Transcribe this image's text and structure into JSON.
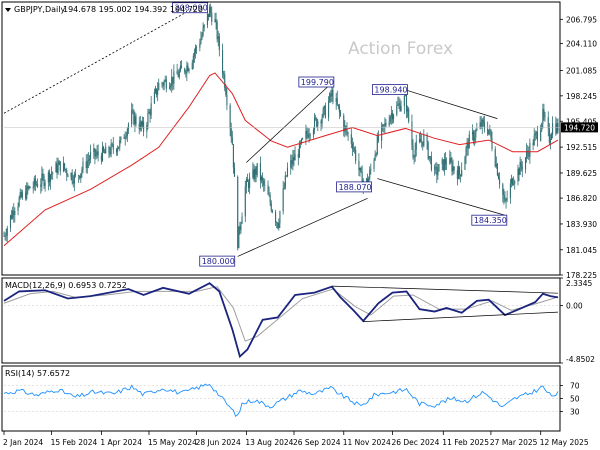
{
  "header": {
    "symbol": "GBPJPY,Daily",
    "ohlc": "194.678 195.002 194.392 194.720"
  },
  "watermark": "Action Forex",
  "colors": {
    "candle": "#2f6f73",
    "ma": "#e02020",
    "macd": "#1a237e",
    "signal": "#9e9e9e",
    "rsi": "#1e90ff",
    "annotation_border": "#1f1f8f",
    "current_price_bg": "#000000",
    "frame": "#000000"
  },
  "chart_data": [
    {
      "type": "candlestick",
      "name": "price",
      "title": "GBPJPY,Daily",
      "ylim": [
        178.225,
        208.73
      ],
      "y_ticks": [
        "206.795",
        "204.110",
        "201.085",
        "198.245",
        "195.405",
        "192.515",
        "189.625",
        "186.820",
        "183.930",
        "181.045",
        "178.225"
      ],
      "current_price": "194.720",
      "path_points": [
        {
          "date": "2024-01-02",
          "value": 182.6
        },
        {
          "date": "2024-01-12",
          "value": 186.0
        },
        {
          "date": "2024-01-26",
          "value": 188.0
        },
        {
          "date": "2024-02-09",
          "value": 189.0
        },
        {
          "date": "2024-02-23",
          "value": 190.5
        },
        {
          "date": "2024-03-08",
          "value": 189.0
        },
        {
          "date": "2024-03-22",
          "value": 191.5
        },
        {
          "date": "2024-04-05",
          "value": 191.8
        },
        {
          "date": "2024-04-19",
          "value": 193.0
        },
        {
          "date": "2024-04-29",
          "value": 196.0
        },
        {
          "date": "2024-05-10",
          "value": 194.5
        },
        {
          "date": "2024-05-24",
          "value": 199.5
        },
        {
          "date": "2024-06-07",
          "value": 200.2
        },
        {
          "date": "2024-06-21",
          "value": 201.8
        },
        {
          "date": "2024-07-03",
          "value": 205.0
        },
        {
          "date": "2024-07-10",
          "value": 207.8
        },
        {
          "date": "2024-07-15",
          "value": 206.5
        },
        {
          "date": "2024-07-25",
          "value": 199.0
        },
        {
          "date": "2024-07-31",
          "value": 193.0
        },
        {
          "date": "2024-08-05",
          "value": 182.0
        },
        {
          "date": "2024-08-12",
          "value": 188.0
        },
        {
          "date": "2024-08-23",
          "value": 190.0
        },
        {
          "date": "2024-09-05",
          "value": 186.0
        },
        {
          "date": "2024-09-11",
          "value": 184.0
        },
        {
          "date": "2024-09-20",
          "value": 190.0
        },
        {
          "date": "2024-09-30",
          "value": 192.0
        },
        {
          "date": "2024-10-10",
          "value": 194.5
        },
        {
          "date": "2024-10-25",
          "value": 196.5
        },
        {
          "date": "2024-10-31",
          "value": 198.5
        },
        {
          "date": "2024-11-05",
          "value": 197.0
        },
        {
          "date": "2024-11-12",
          "value": 194.5
        },
        {
          "date": "2024-11-19",
          "value": 193.0
        },
        {
          "date": "2024-11-27",
          "value": 189.0
        },
        {
          "date": "2024-12-03",
          "value": 188.5
        },
        {
          "date": "2024-12-12",
          "value": 193.0
        },
        {
          "date": "2024-12-23",
          "value": 196.0
        },
        {
          "date": "2025-01-07",
          "value": 198.0
        },
        {
          "date": "2025-01-14",
          "value": 192.0
        },
        {
          "date": "2025-01-24",
          "value": 193.5
        },
        {
          "date": "2025-02-03",
          "value": 189.5
        },
        {
          "date": "2025-02-14",
          "value": 191.0
        },
        {
          "date": "2025-02-26",
          "value": 189.5
        },
        {
          "date": "2025-03-06",
          "value": 193.0
        },
        {
          "date": "2025-03-18",
          "value": 195.0
        },
        {
          "date": "2025-03-25",
          "value": 194.5
        },
        {
          "date": "2025-04-02",
          "value": 190.0
        },
        {
          "date": "2025-04-09",
          "value": 186.0
        },
        {
          "date": "2025-04-16",
          "value": 189.0
        },
        {
          "date": "2025-04-25",
          "value": 190.5
        },
        {
          "date": "2025-05-02",
          "value": 192.5
        },
        {
          "date": "2025-05-09",
          "value": 194.0
        },
        {
          "date": "2025-05-14",
          "value": 196.0
        },
        {
          "date": "2025-05-20",
          "value": 193.5
        },
        {
          "date": "2025-05-23",
          "value": 195.0
        },
        {
          "date": "2025-05-28",
          "value": 194.7
        }
      ],
      "ma_points": [
        {
          "date": "2024-01-02",
          "value": 181.5
        },
        {
          "date": "2024-02-09",
          "value": 185.5
        },
        {
          "date": "2024-03-22",
          "value": 187.8
        },
        {
          "date": "2024-04-29",
          "value": 190.5
        },
        {
          "date": "2024-05-24",
          "value": 192.5
        },
        {
          "date": "2024-06-21",
          "value": 197.0
        },
        {
          "date": "2024-07-10",
          "value": 200.5
        },
        {
          "date": "2024-07-15",
          "value": 200.8
        },
        {
          "date": "2024-07-31",
          "value": 198.5
        },
        {
          "date": "2024-08-12",
          "value": 195.5
        },
        {
          "date": "2024-09-05",
          "value": 193.2
        },
        {
          "date": "2024-09-20",
          "value": 192.5
        },
        {
          "date": "2024-10-25",
          "value": 193.8
        },
        {
          "date": "2024-11-19",
          "value": 194.7
        },
        {
          "date": "2024-12-12",
          "value": 193.8
        },
        {
          "date": "2025-01-07",
          "value": 194.6
        },
        {
          "date": "2025-02-03",
          "value": 193.5
        },
        {
          "date": "2025-02-26",
          "value": 192.8
        },
        {
          "date": "2025-03-25",
          "value": 193.3
        },
        {
          "date": "2025-04-16",
          "value": 192.0
        },
        {
          "date": "2025-05-09",
          "value": 192.0
        },
        {
          "date": "2025-05-28",
          "value": 193.3
        }
      ],
      "annotations": [
        {
          "label": "208.090",
          "date": "2024-07-10",
          "value": 208.09
        },
        {
          "label": "180.000",
          "date": "2024-08-05",
          "value": 180.0
        },
        {
          "label": "199.790",
          "date": "2024-10-31",
          "value": 199.79
        },
        {
          "label": "188.070",
          "date": "2024-12-03",
          "value": 188.07
        },
        {
          "label": "198.940",
          "date": "2025-01-07",
          "value": 198.94
        },
        {
          "label": "184.350",
          "date": "2025-04-07",
          "value": 184.35
        }
      ]
    },
    {
      "type": "line",
      "name": "macd",
      "title": "MACD(12,26,9) 0.6953 0.7252",
      "ylim": [
        -4.8502,
        2.3345
      ],
      "y_ticks": [
        "2.3345",
        "0.00",
        "-4.8502"
      ],
      "macd_points": [
        {
          "date": "2024-01-02",
          "value": 0.4
        },
        {
          "date": "2024-01-16",
          "value": 1.2
        },
        {
          "date": "2024-02-09",
          "value": 1.3
        },
        {
          "date": "2024-03-01",
          "value": 0.6
        },
        {
          "date": "2024-03-22",
          "value": 0.8
        },
        {
          "date": "2024-04-26",
          "value": 1.4
        },
        {
          "date": "2024-05-10",
          "value": 0.9
        },
        {
          "date": "2024-05-28",
          "value": 1.5
        },
        {
          "date": "2024-06-21",
          "value": 1.0
        },
        {
          "date": "2024-07-10",
          "value": 1.9
        },
        {
          "date": "2024-07-19",
          "value": 1.2
        },
        {
          "date": "2024-07-31",
          "value": -2.0
        },
        {
          "date": "2024-08-07",
          "value": -4.3
        },
        {
          "date": "2024-08-14",
          "value": -3.7
        },
        {
          "date": "2024-08-28",
          "value": -1.2
        },
        {
          "date": "2024-09-11",
          "value": -1.0
        },
        {
          "date": "2024-09-27",
          "value": 0.9
        },
        {
          "date": "2024-10-15",
          "value": 1.1
        },
        {
          "date": "2024-10-31",
          "value": 1.6
        },
        {
          "date": "2024-11-08",
          "value": 0.7
        },
        {
          "date": "2024-11-20",
          "value": -0.4
        },
        {
          "date": "2024-11-29",
          "value": -1.3
        },
        {
          "date": "2024-12-13",
          "value": 0.2
        },
        {
          "date": "2024-12-26",
          "value": 1.1
        },
        {
          "date": "2025-01-08",
          "value": 1.2
        },
        {
          "date": "2025-01-20",
          "value": -0.3
        },
        {
          "date": "2025-02-03",
          "value": -0.5
        },
        {
          "date": "2025-02-14",
          "value": -0.2
        },
        {
          "date": "2025-02-28",
          "value": -0.6
        },
        {
          "date": "2025-03-14",
          "value": 0.4
        },
        {
          "date": "2025-03-25",
          "value": 0.5
        },
        {
          "date": "2025-04-09",
          "value": -0.8
        },
        {
          "date": "2025-04-22",
          "value": -0.3
        },
        {
          "date": "2025-05-07",
          "value": 0.3
        },
        {
          "date": "2025-05-14",
          "value": 1.0
        },
        {
          "date": "2025-05-21",
          "value": 0.8
        },
        {
          "date": "2025-05-28",
          "value": 0.7
        }
      ],
      "signal_points": [
        {
          "date": "2024-01-02",
          "value": 0.2
        },
        {
          "date": "2024-01-26",
          "value": 1.0
        },
        {
          "date": "2024-02-16",
          "value": 1.2
        },
        {
          "date": "2024-03-08",
          "value": 0.7
        },
        {
          "date": "2024-04-05",
          "value": 0.9
        },
        {
          "date": "2024-05-03",
          "value": 1.2
        },
        {
          "date": "2024-05-31",
          "value": 1.2
        },
        {
          "date": "2024-06-28",
          "value": 1.2
        },
        {
          "date": "2024-07-17",
          "value": 1.6
        },
        {
          "date": "2024-08-01",
          "value": -0.2
        },
        {
          "date": "2024-08-12",
          "value": -3.0
        },
        {
          "date": "2024-08-23",
          "value": -2.6
        },
        {
          "date": "2024-09-13",
          "value": -1.0
        },
        {
          "date": "2024-10-04",
          "value": 0.6
        },
        {
          "date": "2024-11-01",
          "value": 1.4
        },
        {
          "date": "2024-11-22",
          "value": -0.1
        },
        {
          "date": "2024-12-06",
          "value": -0.8
        },
        {
          "date": "2024-12-27",
          "value": 0.8
        },
        {
          "date": "2025-01-14",
          "value": 0.9
        },
        {
          "date": "2025-02-07",
          "value": -0.3
        },
        {
          "date": "2025-03-04",
          "value": -0.3
        },
        {
          "date": "2025-03-28",
          "value": 0.4
        },
        {
          "date": "2025-04-15",
          "value": -0.4
        },
        {
          "date": "2025-05-09",
          "value": 0.2
        },
        {
          "date": "2025-05-28",
          "value": 0.73
        }
      ],
      "trendline_upper": [
        {
          "date": "2024-10-31",
          "value": 1.65
        },
        {
          "date": "2025-05-28",
          "value": 1.05
        }
      ],
      "trendline_lower": [
        {
          "date": "2024-11-29",
          "value": -1.35
        },
        {
          "date": "2025-05-28",
          "value": -0.55
        }
      ]
    },
    {
      "type": "line",
      "name": "rsi",
      "title": "RSI(14) 57.6572",
      "ylim": [
        0,
        100
      ],
      "y_ticks": [
        "70",
        "50",
        "30"
      ],
      "levels": [
        70,
        50,
        30
      ],
      "points": [
        {
          "date": "2024-01-02",
          "value": 58
        },
        {
          "date": "2024-01-16",
          "value": 62
        },
        {
          "date": "2024-02-02",
          "value": 55
        },
        {
          "date": "2024-02-20",
          "value": 64
        },
        {
          "date": "2024-03-08",
          "value": 52
        },
        {
          "date": "2024-03-25",
          "value": 60
        },
        {
          "date": "2024-04-12",
          "value": 57
        },
        {
          "date": "2024-04-29",
          "value": 68
        },
        {
          "date": "2024-05-10",
          "value": 56
        },
        {
          "date": "2024-05-28",
          "value": 66
        },
        {
          "date": "2024-06-14",
          "value": 58
        },
        {
          "date": "2024-06-28",
          "value": 66
        },
        {
          "date": "2024-07-10",
          "value": 73
        },
        {
          "date": "2024-07-19",
          "value": 55
        },
        {
          "date": "2024-07-31",
          "value": 32
        },
        {
          "date": "2024-08-05",
          "value": 22
        },
        {
          "date": "2024-08-09",
          "value": 42
        },
        {
          "date": "2024-08-20",
          "value": 48
        },
        {
          "date": "2024-09-04",
          "value": 38
        },
        {
          "date": "2024-09-18",
          "value": 50
        },
        {
          "date": "2024-10-01",
          "value": 62
        },
        {
          "date": "2024-10-15",
          "value": 57
        },
        {
          "date": "2024-10-30",
          "value": 66
        },
        {
          "date": "2024-11-12",
          "value": 52
        },
        {
          "date": "2024-11-27",
          "value": 38
        },
        {
          "date": "2024-12-10",
          "value": 56
        },
        {
          "date": "2024-12-26",
          "value": 60
        },
        {
          "date": "2025-01-08",
          "value": 64
        },
        {
          "date": "2025-01-20",
          "value": 42
        },
        {
          "date": "2025-02-03",
          "value": 40
        },
        {
          "date": "2025-02-18",
          "value": 50
        },
        {
          "date": "2025-03-04",
          "value": 46
        },
        {
          "date": "2025-03-20",
          "value": 60
        },
        {
          "date": "2025-04-07",
          "value": 36
        },
        {
          "date": "2025-04-18",
          "value": 50
        },
        {
          "date": "2025-05-02",
          "value": 58
        },
        {
          "date": "2025-05-14",
          "value": 68
        },
        {
          "date": "2025-05-21",
          "value": 54
        },
        {
          "date": "2025-05-28",
          "value": 57.7
        }
      ]
    }
  ],
  "x_axis": {
    "range": [
      "2024-01-02",
      "2025-05-28"
    ],
    "ticks": [
      {
        "date": "2024-01-02",
        "label": "2 Jan 2024"
      },
      {
        "date": "2024-02-15",
        "label": "15 Feb 2024"
      },
      {
        "date": "2024-04-01",
        "label": "1 Apr 2024"
      },
      {
        "date": "2024-05-15",
        "label": "15 May 2024"
      },
      {
        "date": "2024-06-28",
        "label": "28 Jun 2024"
      },
      {
        "date": "2024-08-13",
        "label": "13 Aug 2024"
      },
      {
        "date": "2024-09-26",
        "label": "26 Sep 2024"
      },
      {
        "date": "2024-11-11",
        "label": "11 Nov 2024"
      },
      {
        "date": "2024-12-26",
        "label": "26 Dec 2024"
      },
      {
        "date": "2025-02-11",
        "label": "11 Feb 2025"
      },
      {
        "date": "2025-03-27",
        "label": "27 Mar 2025"
      },
      {
        "date": "2025-05-12",
        "label": "12 May 2025"
      }
    ]
  }
}
